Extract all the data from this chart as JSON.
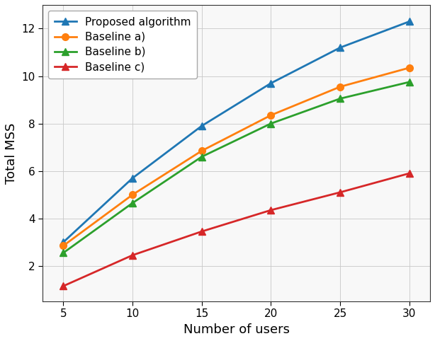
{
  "x": [
    5,
    10,
    15,
    20,
    25,
    30
  ],
  "proposed": [
    3.0,
    5.7,
    7.9,
    9.7,
    11.2,
    12.3
  ],
  "baseline_a": [
    2.85,
    5.0,
    6.85,
    8.35,
    9.55,
    10.35
  ],
  "baseline_b": [
    2.55,
    4.65,
    6.6,
    8.0,
    9.05,
    9.75
  ],
  "baseline_c": [
    1.15,
    2.45,
    3.45,
    4.35,
    5.1,
    5.9
  ],
  "colors": {
    "proposed": "#1f77b4",
    "baseline_a": "#ff7f0e",
    "baseline_b": "#2ca02c",
    "baseline_c": "#d62728"
  },
  "labels": {
    "proposed": "Proposed algorithm",
    "baseline_a": "Baseline a)",
    "baseline_b": "Baseline b)",
    "baseline_c": "Baseline c)"
  },
  "xlabel": "Number of users",
  "ylabel": "Total MSS",
  "xlim": [
    3.5,
    31.5
  ],
  "ylim": [
    0.5,
    13.0
  ],
  "yticks": [
    2,
    4,
    6,
    8,
    10,
    12
  ],
  "xticks": [
    5,
    10,
    15,
    20,
    25,
    30
  ],
  "figsize": [
    6.14,
    4.82
  ],
  "dpi": 100
}
